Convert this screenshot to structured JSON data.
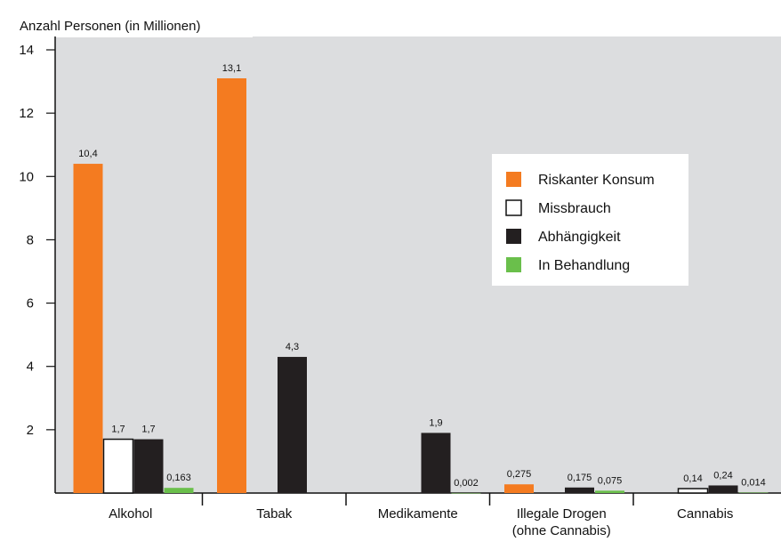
{
  "chart_data": {
    "type": "bar",
    "ylabel": "Anzahl Personen (in Millionen)",
    "ylim": [
      0,
      14
    ],
    "yticks": [
      2,
      4,
      6,
      8,
      10,
      12,
      14
    ],
    "categories": [
      "Alkohol",
      "Tabak",
      "Medikamente",
      "Illegale Drogen\n(ohne Cannabis)",
      "Cannabis"
    ],
    "series": [
      {
        "name": "Riskanter Konsum",
        "color": "#f47b20",
        "values": [
          10.4,
          13.1,
          null,
          0.275,
          null
        ],
        "labels": [
          "10,4",
          "13,1",
          "",
          "0,275",
          ""
        ]
      },
      {
        "name": "Missbrauch",
        "color": "#ffffff",
        "values": [
          1.7,
          null,
          null,
          null,
          0.14
        ],
        "labels": [
          "1,7",
          "",
          "",
          "",
          "0,14"
        ]
      },
      {
        "name": "Abhängigkeit",
        "color": "#231f20",
        "values": [
          1.7,
          4.3,
          1.9,
          0.175,
          0.24
        ],
        "labels": [
          "1,7",
          "4,3",
          "1,9",
          "0,175",
          "0,24"
        ]
      },
      {
        "name": "In Behandlung",
        "color": "#6abf4b",
        "values": [
          0.163,
          null,
          0.002,
          0.075,
          0.014
        ],
        "labels": [
          "0,163",
          "",
          "0,002",
          "0,075",
          "0,014"
        ]
      }
    ],
    "legend_position": "top-right",
    "background": "#dcdddf",
    "grid": false
  }
}
